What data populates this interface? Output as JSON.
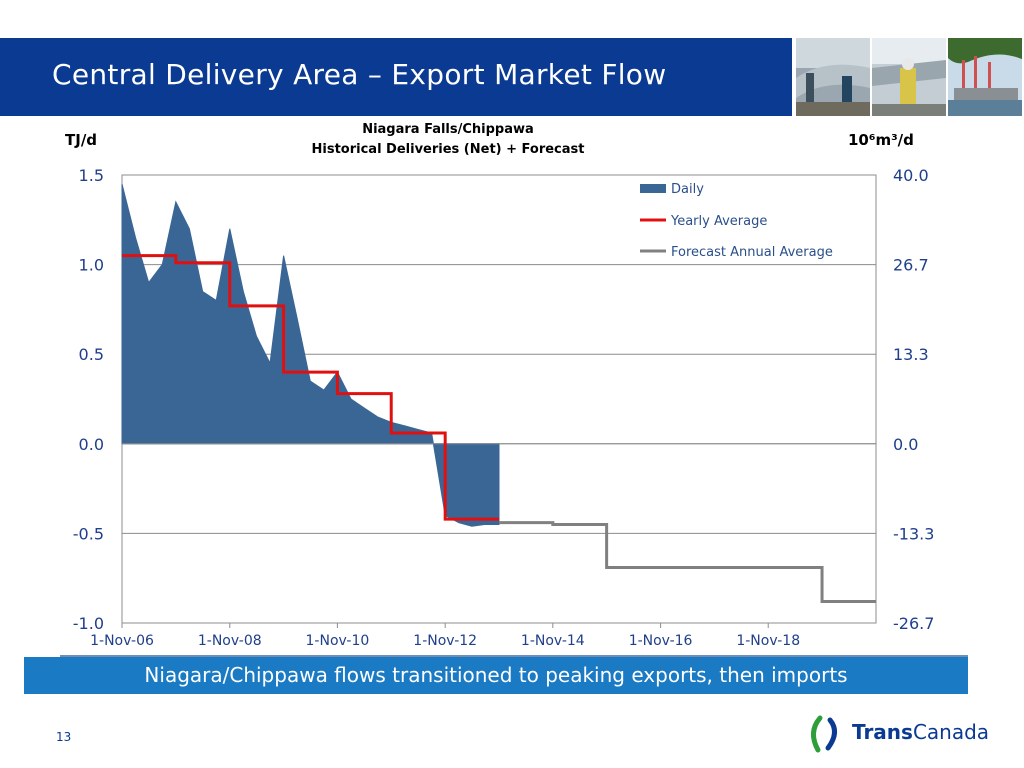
{
  "slide": {
    "title": "Central Delivery Area – Export Market Flow",
    "caption": "Niagara/Chippawa flows transitioned to peaking exports, then imports",
    "page_number": "13",
    "logo_text_bold": "Trans",
    "logo_text_regular": "Canada"
  },
  "colors": {
    "header_bar": "#0b3a93",
    "caption_bar": "#1a7ac4",
    "daily": "#3a6696",
    "yearly_average": "#e01010",
    "forecast": "#808080"
  },
  "chart_data": {
    "type": "area",
    "title": "Niagara Falls/Chippawa",
    "subtitle": "Historical Deliveries (Net) + Forecast",
    "ylabel_left": "TJ/d",
    "ylabel_right": "10⁶m³/d",
    "ylim": [
      -1.0,
      1.5
    ],
    "xlim": [
      "2006-11-01",
      "2020-11-01"
    ],
    "yticks_left": [
      "1.5",
      "1.0",
      "0.5",
      "0.0",
      "-0.5",
      "-1.0"
    ],
    "yticks_right": [
      "40.0",
      "26.7",
      "13.3",
      "0.0",
      "-13.3",
      "-26.7"
    ],
    "xticks": [
      "1-Nov-06",
      "1-Nov-08",
      "1-Nov-10",
      "1-Nov-12",
      "1-Nov-14",
      "1-Nov-16",
      "1-Nov-18"
    ],
    "grid": true,
    "legend_position": "top-right",
    "series": [
      {
        "name": "Daily",
        "kind": "area",
        "x": [
          "2006-11",
          "2007-02",
          "2007-05",
          "2007-08",
          "2007-11",
          "2008-02",
          "2008-05",
          "2008-08",
          "2008-11",
          "2009-02",
          "2009-05",
          "2009-08",
          "2009-11",
          "2010-02",
          "2010-05",
          "2010-08",
          "2010-11",
          "2011-02",
          "2011-05",
          "2011-08",
          "2011-11",
          "2012-02",
          "2012-05",
          "2012-08",
          "2012-11",
          "2013-02",
          "2013-05",
          "2013-08",
          "2013-11"
        ],
        "values": [
          1.45,
          1.15,
          0.9,
          1.0,
          1.35,
          1.2,
          0.85,
          0.8,
          1.2,
          0.85,
          0.6,
          0.45,
          1.05,
          0.7,
          0.35,
          0.3,
          0.4,
          0.25,
          0.2,
          0.15,
          0.12,
          0.1,
          0.08,
          0.06,
          -0.4,
          -0.44,
          -0.46,
          -0.45,
          -0.45
        ]
      },
      {
        "name": "Yearly Average",
        "kind": "step",
        "x": [
          "2006-11",
          "2007-11",
          "2008-11",
          "2009-11",
          "2010-11",
          "2011-11",
          "2012-11",
          "2013-11"
        ],
        "values": [
          1.05,
          1.01,
          0.77,
          0.4,
          0.28,
          0.06,
          -0.42,
          -0.42
        ]
      },
      {
        "name": "Forecast Annual Average",
        "kind": "step",
        "x": [
          "2013-11",
          "2014-11",
          "2015-11",
          "2019-11",
          "2020-11"
        ],
        "values": [
          -0.44,
          -0.45,
          -0.69,
          -0.88,
          -0.88
        ]
      }
    ]
  }
}
